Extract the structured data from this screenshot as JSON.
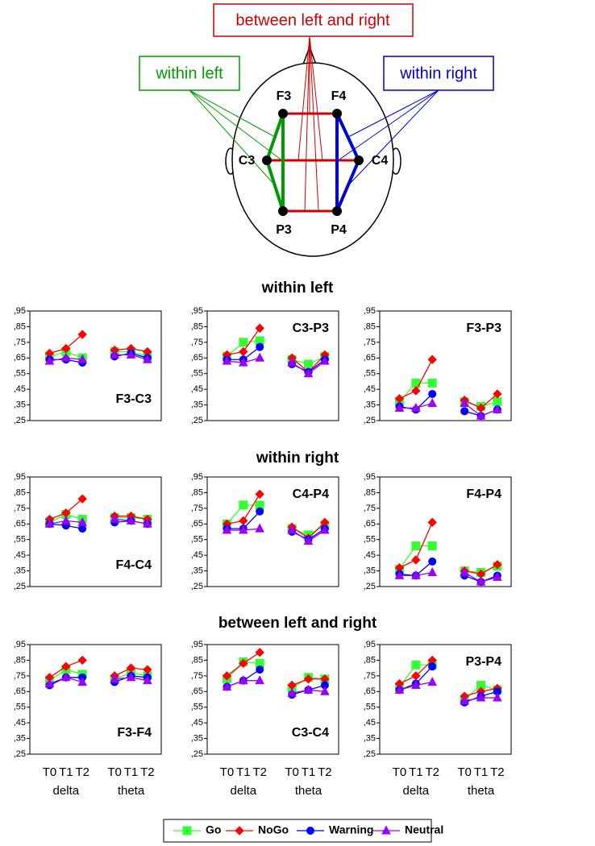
{
  "diagram": {
    "groups": [
      "between left and right",
      "within left",
      "within right"
    ],
    "electrodes": [
      "F3",
      "F4",
      "C3",
      "C4",
      "P3",
      "P4"
    ]
  },
  "sections": [
    "within left",
    "within right",
    "between left and right"
  ],
  "x_axis": {
    "categories": [
      "T0",
      "T1",
      "T2",
      "T0",
      "T1",
      "T2"
    ],
    "groups": [
      "delta",
      "theta"
    ]
  },
  "legend": [
    {
      "name": "Go",
      "color": "#33ff33",
      "marker": "square"
    },
    {
      "name": "NoGo",
      "color": "#ff0000",
      "marker": "diamond"
    },
    {
      "name": "Warning",
      "color": "#0000ff",
      "marker": "circle"
    },
    {
      "name": "Neutral",
      "color": "#9900ff",
      "marker": "triangle"
    }
  ],
  "chart_data": [
    {
      "type": "line",
      "title": "F3-C3",
      "label_corner": "lower right",
      "ylim": [
        0.25,
        0.95
      ],
      "yticks": [
        {
          "value": 0.25,
          "label": ",25"
        },
        {
          "value": 0.35,
          "label": ",35"
        },
        {
          "value": 0.45,
          "label": ",45"
        },
        {
          "value": 0.55,
          "label": ",55"
        },
        {
          "value": 0.65,
          "label": ",65"
        },
        {
          "value": 0.75,
          "label": ",75"
        },
        {
          "value": 0.85,
          "label": ",85"
        },
        {
          "value": 0.95,
          "label": ",95"
        }
      ],
      "series": [
        {
          "values": [
            0.66,
            0.69,
            0.65,
            0.69,
            0.69,
            0.66
          ]
        },
        {
          "values": [
            0.68,
            0.71,
            0.8,
            0.7,
            0.71,
            0.69
          ]
        },
        {
          "values": [
            0.64,
            0.64,
            0.62,
            0.66,
            0.68,
            0.65
          ]
        },
        {
          "values": [
            0.63,
            0.65,
            0.64,
            0.67,
            0.67,
            0.64
          ]
        }
      ]
    },
    {
      "type": "line",
      "title": "C3-P3",
      "label_corner": "upper right",
      "ylim": [
        0.25,
        0.95
      ],
      "yticks": [
        {
          "value": 0.25,
          "label": ",25"
        },
        {
          "value": 0.35,
          "label": ",35"
        },
        {
          "value": 0.45,
          "label": ",45"
        },
        {
          "value": 0.55,
          "label": ",55"
        },
        {
          "value": 0.65,
          "label": ",65"
        },
        {
          "value": 0.75,
          "label": ",75"
        },
        {
          "value": 0.85,
          "label": ",85"
        },
        {
          "value": 0.95,
          "label": ",95"
        }
      ],
      "series": [
        {
          "values": [
            0.66,
            0.75,
            0.76,
            0.64,
            0.61,
            0.66
          ]
        },
        {
          "values": [
            0.67,
            0.69,
            0.84,
            0.65,
            0.56,
            0.67
          ]
        },
        {
          "values": [
            0.64,
            0.64,
            0.72,
            0.61,
            0.56,
            0.64
          ]
        },
        {
          "values": [
            0.63,
            0.62,
            0.65,
            0.62,
            0.55,
            0.63
          ]
        }
      ]
    },
    {
      "type": "line",
      "title": "F3-P3",
      "label_corner": "upper right",
      "ylim": [
        0.25,
        0.95
      ],
      "yticks": [
        {
          "value": 0.25,
          "label": ",25"
        },
        {
          "value": 0.35,
          "label": ",35"
        },
        {
          "value": 0.45,
          "label": ",45"
        },
        {
          "value": 0.55,
          "label": ",55"
        },
        {
          "value": 0.65,
          "label": ",65"
        },
        {
          "value": 0.75,
          "label": ",75"
        },
        {
          "value": 0.85,
          "label": ",85"
        },
        {
          "value": 0.95,
          "label": ",95"
        }
      ],
      "series": [
        {
          "values": [
            0.37,
            0.49,
            0.49,
            0.37,
            0.34,
            0.37
          ]
        },
        {
          "values": [
            0.39,
            0.44,
            0.64,
            0.38,
            0.33,
            0.42
          ]
        },
        {
          "values": [
            0.34,
            0.32,
            0.42,
            0.31,
            0.28,
            0.32
          ]
        },
        {
          "values": [
            0.33,
            0.33,
            0.36,
            0.36,
            0.28,
            0.32
          ]
        }
      ]
    },
    {
      "type": "line",
      "title": "F4-C4",
      "label_corner": "lower right",
      "ylim": [
        0.25,
        0.95
      ],
      "yticks": [
        {
          "value": 0.25,
          "label": ",25"
        },
        {
          "value": 0.35,
          "label": ",35"
        },
        {
          "value": 0.45,
          "label": ",45"
        },
        {
          "value": 0.55,
          "label": ",55"
        },
        {
          "value": 0.65,
          "label": ",65"
        },
        {
          "value": 0.75,
          "label": ",75"
        },
        {
          "value": 0.85,
          "label": ",85"
        },
        {
          "value": 0.95,
          "label": ",95"
        }
      ],
      "series": [
        {
          "values": [
            0.66,
            0.71,
            0.68,
            0.69,
            0.69,
            0.68
          ]
        },
        {
          "values": [
            0.68,
            0.72,
            0.81,
            0.7,
            0.7,
            0.68
          ]
        },
        {
          "values": [
            0.65,
            0.64,
            0.62,
            0.66,
            0.67,
            0.65
          ]
        },
        {
          "values": [
            0.65,
            0.67,
            0.66,
            0.68,
            0.67,
            0.65
          ]
        }
      ]
    },
    {
      "type": "line",
      "title": "C4-P4",
      "label_corner": "upper right",
      "ylim": [
        0.25,
        0.95
      ],
      "yticks": [
        {
          "value": 0.25,
          "label": ",25"
        },
        {
          "value": 0.35,
          "label": ",35"
        },
        {
          "value": 0.45,
          "label": ",45"
        },
        {
          "value": 0.55,
          "label": ",55"
        },
        {
          "value": 0.65,
          "label": ",65"
        },
        {
          "value": 0.75,
          "label": ",75"
        },
        {
          "value": 0.85,
          "label": ",85"
        },
        {
          "value": 0.95,
          "label": ",95"
        }
      ],
      "series": [
        {
          "values": [
            0.65,
            0.77,
            0.77,
            0.62,
            0.58,
            0.64
          ]
        },
        {
          "values": [
            0.65,
            0.67,
            0.84,
            0.63,
            0.56,
            0.66
          ]
        },
        {
          "values": [
            0.62,
            0.62,
            0.73,
            0.6,
            0.55,
            0.62
          ]
        },
        {
          "values": [
            0.61,
            0.61,
            0.62,
            0.61,
            0.54,
            0.61
          ]
        }
      ]
    },
    {
      "type": "line",
      "title": "F4-P4",
      "label_corner": "upper right",
      "ylim": [
        0.25,
        0.95
      ],
      "yticks": [
        {
          "value": 0.25,
          "label": ",25"
        },
        {
          "value": 0.35,
          "label": ",35"
        },
        {
          "value": 0.45,
          "label": ",45"
        },
        {
          "value": 0.55,
          "label": ",55"
        },
        {
          "value": 0.65,
          "label": ",65"
        },
        {
          "value": 0.75,
          "label": ",75"
        },
        {
          "value": 0.85,
          "label": ",85"
        },
        {
          "value": 0.95,
          "label": ",95"
        }
      ],
      "series": [
        {
          "values": [
            0.36,
            0.51,
            0.51,
            0.35,
            0.34,
            0.38
          ]
        },
        {
          "values": [
            0.37,
            0.42,
            0.66,
            0.35,
            0.33,
            0.39
          ]
        },
        {
          "values": [
            0.33,
            0.32,
            0.41,
            0.32,
            0.28,
            0.32
          ]
        },
        {
          "values": [
            0.32,
            0.32,
            0.34,
            0.34,
            0.28,
            0.31
          ]
        }
      ]
    },
    {
      "type": "line",
      "title": "F3-F4",
      "label_corner": "lower right",
      "ylim": [
        0.25,
        0.95
      ],
      "yticks": [
        {
          "value": 0.25,
          "label": ",25"
        },
        {
          "value": 0.35,
          "label": ",35"
        },
        {
          "value": 0.45,
          "label": ",45"
        },
        {
          "value": 0.55,
          "label": ",55"
        },
        {
          "value": 0.65,
          "label": ",65"
        },
        {
          "value": 0.75,
          "label": ",75"
        },
        {
          "value": 0.85,
          "label": ",85"
        },
        {
          "value": 0.95,
          "label": ",95"
        }
      ],
      "series": [
        {
          "values": [
            0.72,
            0.79,
            0.76,
            0.73,
            0.77,
            0.75
          ]
        },
        {
          "values": [
            0.74,
            0.81,
            0.85,
            0.75,
            0.8,
            0.79
          ]
        },
        {
          "values": [
            0.69,
            0.74,
            0.74,
            0.71,
            0.75,
            0.74
          ]
        },
        {
          "values": [
            0.7,
            0.74,
            0.71,
            0.73,
            0.74,
            0.72
          ]
        }
      ]
    },
    {
      "type": "line",
      "title": "C3-C4",
      "label_corner": "lower right",
      "ylim": [
        0.25,
        0.95
      ],
      "yticks": [
        {
          "value": 0.25,
          "label": ",25"
        },
        {
          "value": 0.35,
          "label": ",35"
        },
        {
          "value": 0.45,
          "label": ",45"
        },
        {
          "value": 0.55,
          "label": ",55"
        },
        {
          "value": 0.65,
          "label": ",65"
        },
        {
          "value": 0.75,
          "label": ",75"
        },
        {
          "value": 0.85,
          "label": ",85"
        },
        {
          "value": 0.95,
          "label": ",95"
        }
      ],
      "series": [
        {
          "values": [
            0.73,
            0.84,
            0.83,
            0.67,
            0.74,
            0.73
          ]
        },
        {
          "values": [
            0.75,
            0.83,
            0.9,
            0.69,
            0.73,
            0.73
          ]
        },
        {
          "values": [
            0.68,
            0.72,
            0.79,
            0.63,
            0.66,
            0.69
          ]
        },
        {
          "values": [
            0.68,
            0.72,
            0.72,
            0.64,
            0.66,
            0.65
          ]
        }
      ]
    },
    {
      "type": "line",
      "title": "P3-P4",
      "label_corner": "upper right",
      "ylim": [
        0.25,
        0.95
      ],
      "yticks": [
        {
          "value": 0.25,
          "label": ",25"
        },
        {
          "value": 0.35,
          "label": ",35"
        },
        {
          "value": 0.45,
          "label": ",45"
        },
        {
          "value": 0.55,
          "label": ",55"
        },
        {
          "value": 0.65,
          "label": ",65"
        },
        {
          "value": 0.75,
          "label": ",75"
        },
        {
          "value": 0.85,
          "label": ",85"
        },
        {
          "value": 0.95,
          "label": ",95"
        }
      ],
      "series": [
        {
          "values": [
            0.68,
            0.82,
            0.82,
            0.6,
            0.69,
            0.66
          ]
        },
        {
          "values": [
            0.7,
            0.75,
            0.85,
            0.62,
            0.65,
            0.67
          ]
        },
        {
          "values": [
            0.66,
            0.7,
            0.81,
            0.58,
            0.62,
            0.65
          ]
        },
        {
          "values": [
            0.66,
            0.69,
            0.71,
            0.59,
            0.61,
            0.61
          ]
        }
      ]
    }
  ]
}
